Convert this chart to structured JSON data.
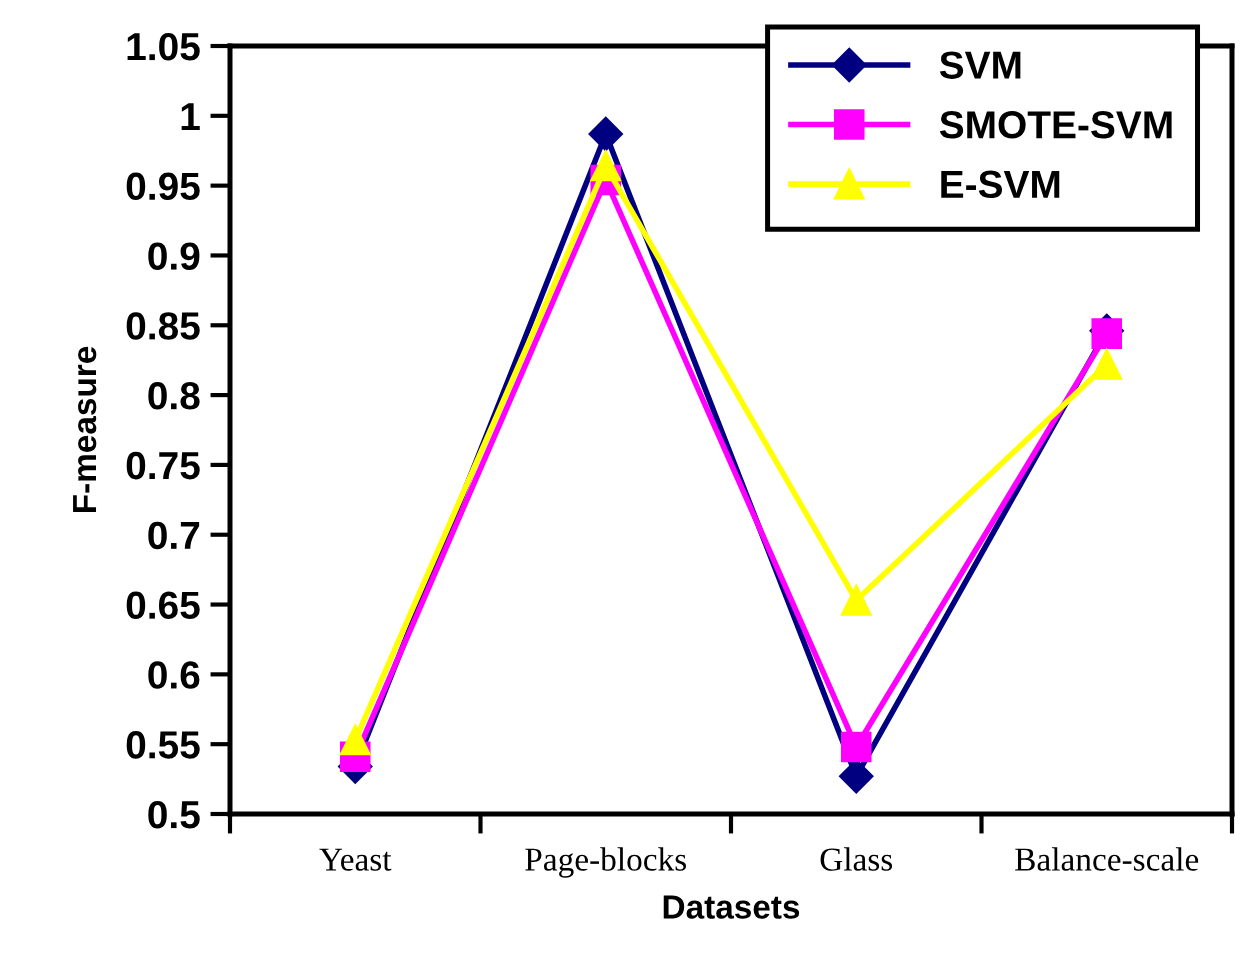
{
  "chart_data": {
    "type": "line",
    "xlabel": "Datasets",
    "ylabel": "F-measure",
    "categories": [
      "Yeast",
      "Page-blocks",
      "Glass",
      "Balance-scale"
    ],
    "series": [
      {
        "name": "SVM",
        "color": "#000080",
        "marker": "diamond",
        "values": [
          0.534,
          0.987,
          0.527,
          0.846
        ]
      },
      {
        "name": "SMOTE-SVM",
        "color": "#ff00ff",
        "marker": "square",
        "values": [
          0.541,
          0.954,
          0.548,
          0.844
        ]
      },
      {
        "name": "E-SVM",
        "color": "#ffff00",
        "marker": "triangle",
        "values": [
          0.553,
          0.964,
          0.653,
          0.822
        ]
      }
    ],
    "ylim": [
      0.5,
      1.05
    ],
    "yticks": [
      0.5,
      0.55,
      0.6,
      0.65,
      0.7,
      0.75,
      0.8,
      0.85,
      0.9,
      0.95,
      1,
      1.05
    ],
    "grid": false,
    "legend": "top right",
    "line_style": "solid"
  }
}
